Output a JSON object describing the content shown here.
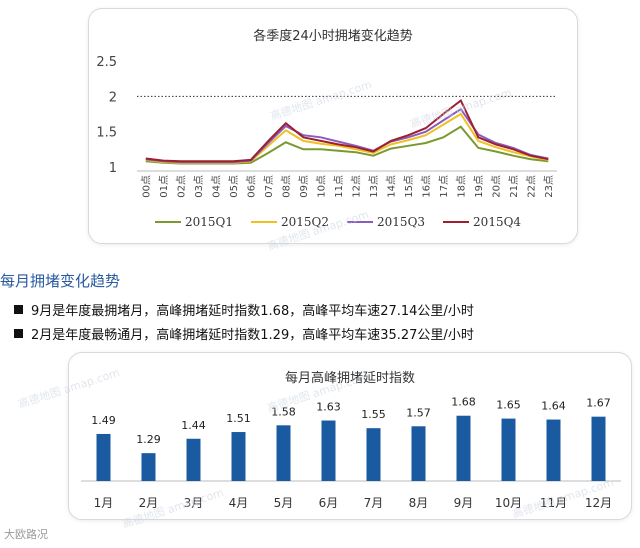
{
  "line_chart": {
    "colors": {
      "2015Q1": "#7a9a30",
      "2015Q2": "#f0c020",
      "2015Q3": "#8a5cc0",
      "2015Q4": "#9c2030"
    }
  },
  "section": {
    "heading": "每月拥堵变化趋势",
    "bullets": [
      "9月是年度最拥堵月，高峰拥堵延时指数1.68，高峰平均车速27.14公里/小时",
      "2月是年度最畅通月，高峰拥堵延时指数1.29，高峰平均车速35.27公里/小时"
    ]
  },
  "bar_chart": {
    "bar_color": "#1a5aa0"
  },
  "watermark_text": "高德地图 amap.com",
  "corner_brand": "大欧路况",
  "chart_data": [
    {
      "type": "line",
      "title": "各季度24小时拥堵变化趋势",
      "xlabel": "",
      "ylabel": "",
      "categories": [
        "00点",
        "01点",
        "02点",
        "03点",
        "04点",
        "05点",
        "06点",
        "07点",
        "08点",
        "09点",
        "10点",
        "11点",
        "12点",
        "13点",
        "14点",
        "15点",
        "16点",
        "17点",
        "18点",
        "19点",
        "20点",
        "21点",
        "22点",
        "23点"
      ],
      "ylim": [
        1,
        2.5
      ],
      "yticks": [
        "1",
        "1.5",
        "2",
        "2.5"
      ],
      "reference_line": 2,
      "grid": false,
      "legend_position": "bottom",
      "series": [
        {
          "name": "2015Q1",
          "values": [
            1.08,
            1.06,
            1.05,
            1.05,
            1.05,
            1.05,
            1.06,
            1.2,
            1.35,
            1.25,
            1.25,
            1.23,
            1.21,
            1.16,
            1.26,
            1.3,
            1.34,
            1.42,
            1.57,
            1.27,
            1.22,
            1.16,
            1.11,
            1.08
          ]
        },
        {
          "name": "2015Q2",
          "values": [
            1.1,
            1.07,
            1.06,
            1.06,
            1.06,
            1.06,
            1.08,
            1.3,
            1.52,
            1.37,
            1.33,
            1.3,
            1.25,
            1.2,
            1.32,
            1.38,
            1.45,
            1.6,
            1.75,
            1.37,
            1.28,
            1.21,
            1.15,
            1.1
          ]
        },
        {
          "name": "2015Q3",
          "values": [
            1.11,
            1.08,
            1.07,
            1.07,
            1.07,
            1.07,
            1.09,
            1.34,
            1.58,
            1.45,
            1.42,
            1.36,
            1.3,
            1.23,
            1.36,
            1.42,
            1.5,
            1.66,
            1.82,
            1.46,
            1.34,
            1.27,
            1.17,
            1.12
          ]
        },
        {
          "name": "2015Q4",
          "values": [
            1.12,
            1.09,
            1.08,
            1.08,
            1.08,
            1.08,
            1.1,
            1.37,
            1.62,
            1.42,
            1.37,
            1.32,
            1.28,
            1.22,
            1.37,
            1.45,
            1.55,
            1.75,
            1.94,
            1.42,
            1.32,
            1.25,
            1.16,
            1.11
          ]
        }
      ]
    },
    {
      "type": "bar",
      "title": "每月高峰拥堵延时指数",
      "xlabel": "",
      "ylabel": "",
      "categories": [
        "1月",
        "2月",
        "3月",
        "4月",
        "5月",
        "6月",
        "7月",
        "8月",
        "9月",
        "10月",
        "11月",
        "12月"
      ],
      "values": [
        1.49,
        1.29,
        1.44,
        1.51,
        1.58,
        1.63,
        1.55,
        1.57,
        1.68,
        1.65,
        1.64,
        1.67
      ],
      "value_labels": [
        "1.49",
        "1.29",
        "1.44",
        "1.51",
        "1.58",
        "1.63",
        "1.55",
        "1.57",
        "1.68",
        "1.65",
        "1.64",
        "1.67"
      ],
      "ylim": [
        1.0,
        1.75
      ],
      "grid": false,
      "legend_position": "none"
    }
  ]
}
